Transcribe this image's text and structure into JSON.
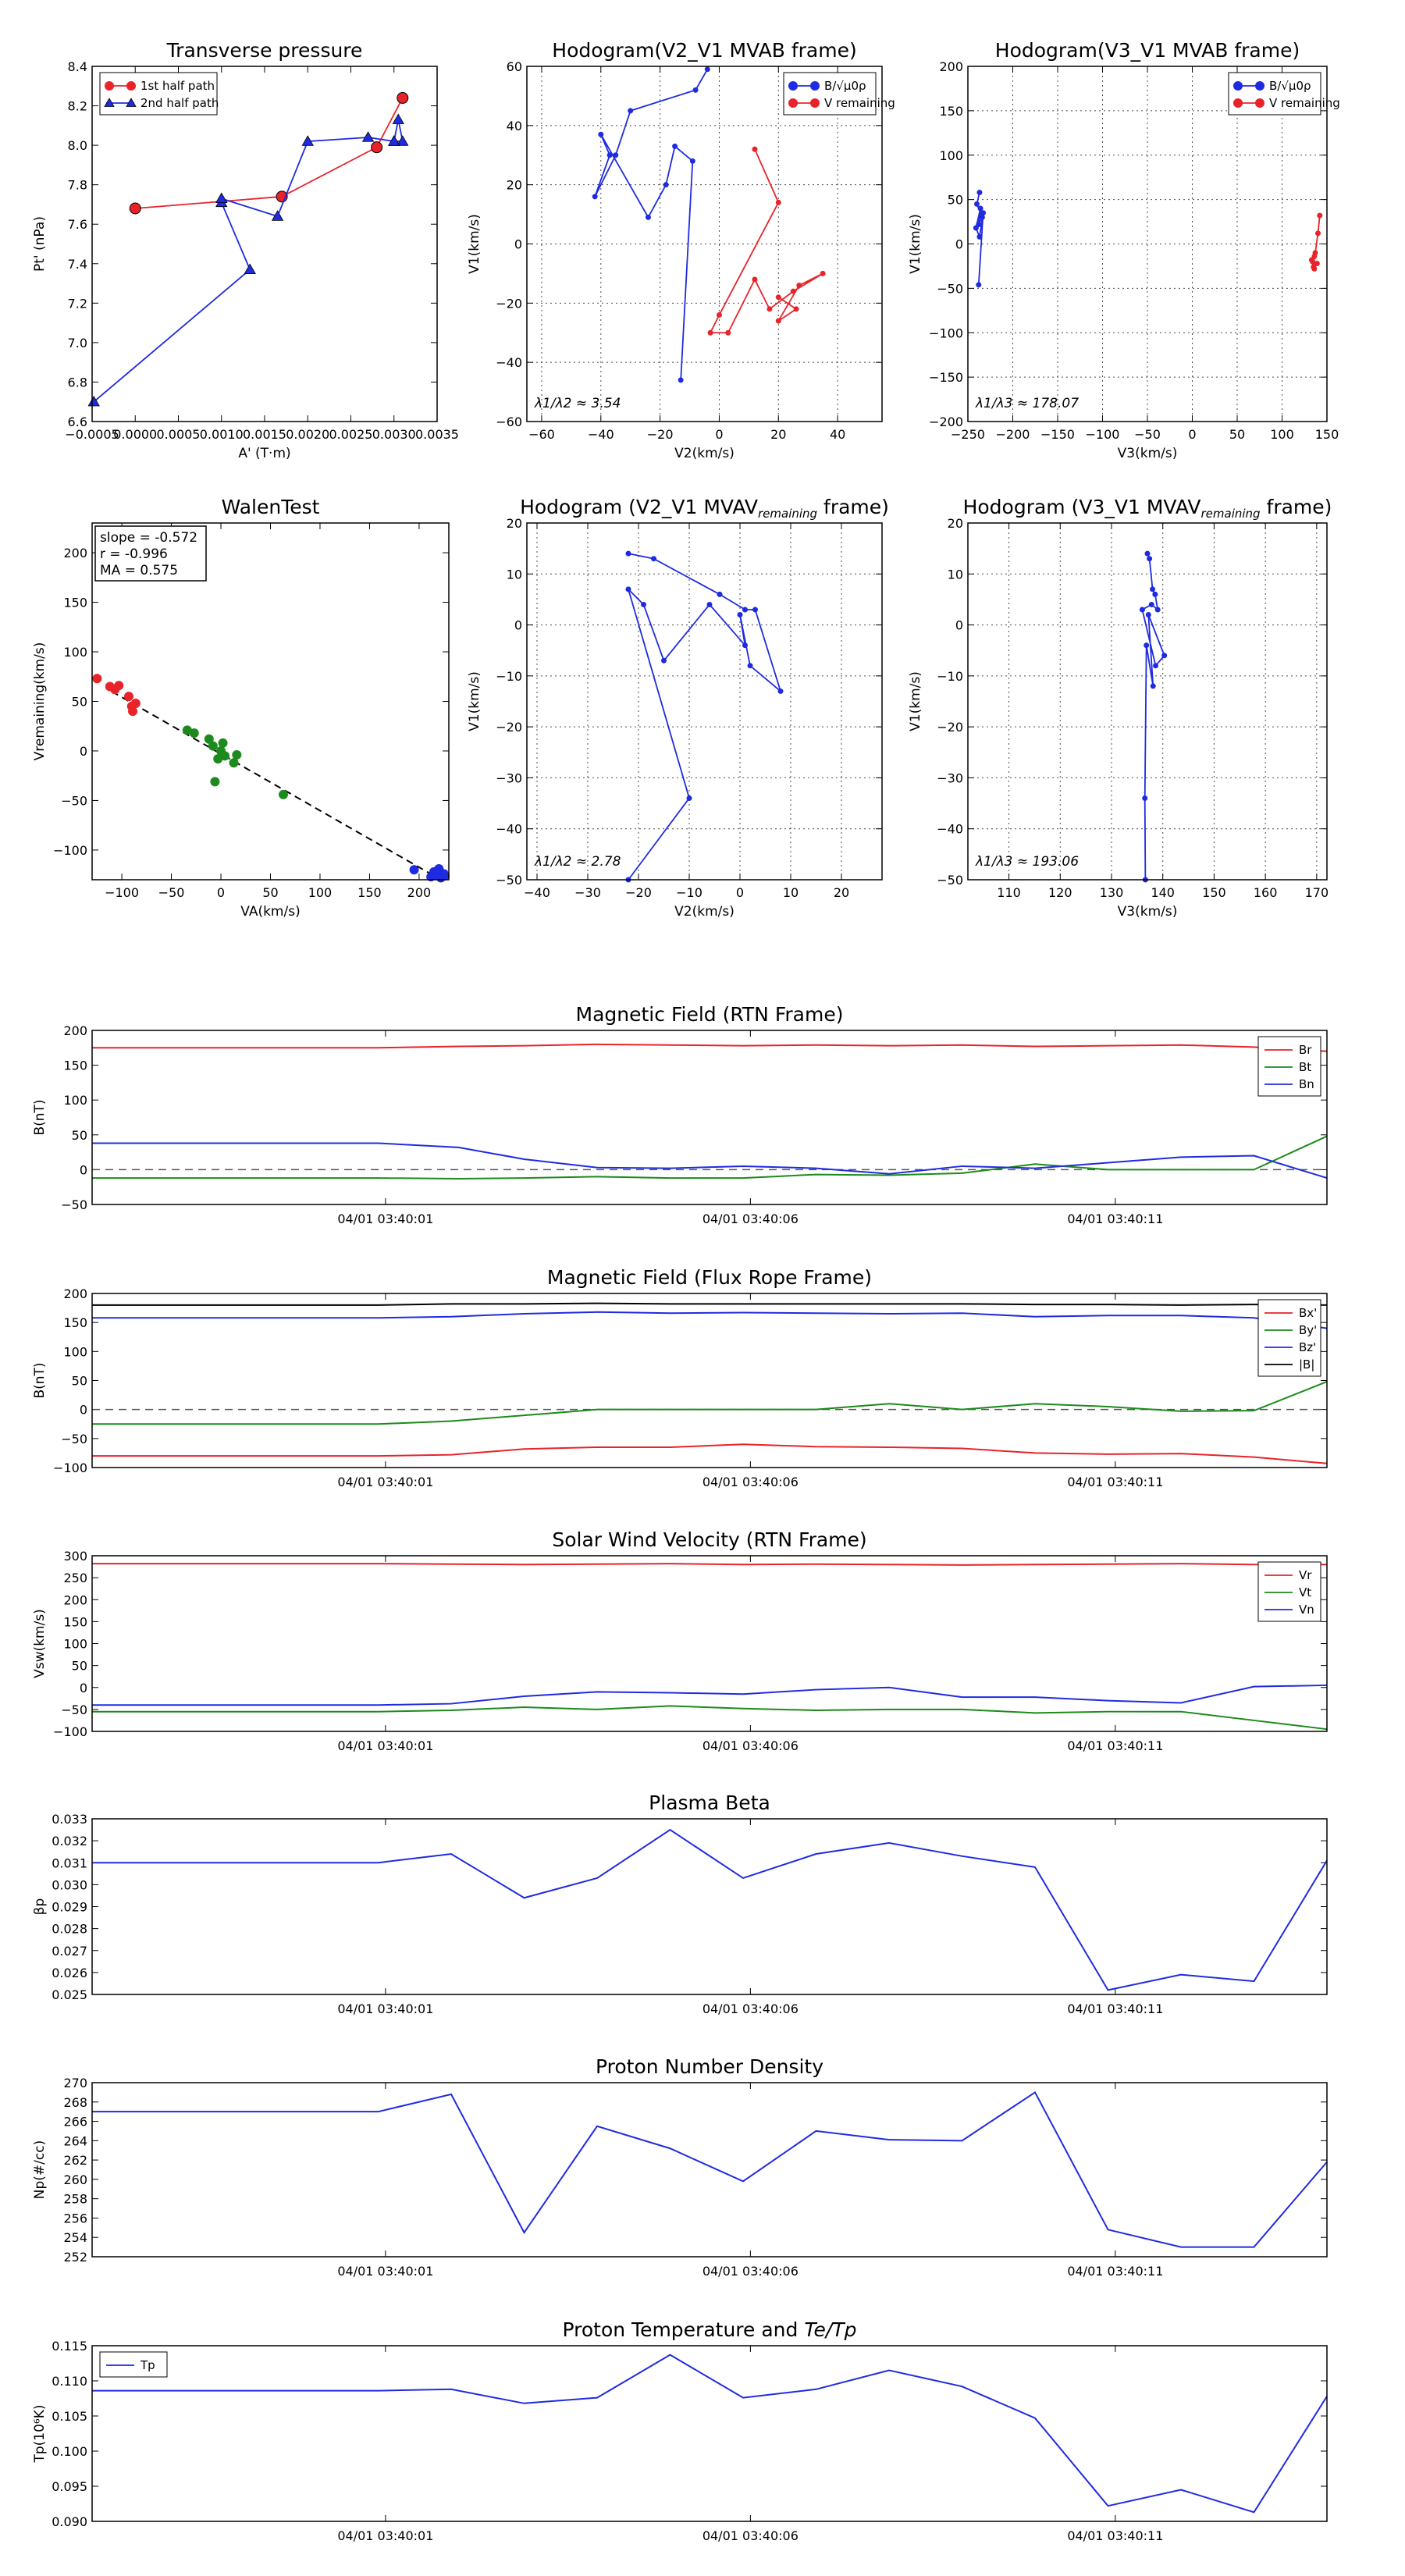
{
  "colors": {
    "red": "#e8232a",
    "blue": "#1f2be0",
    "green": "#1c8a1c",
    "black": "#000000",
    "grid": "#000000"
  },
  "time_ticks": [
    "04/01 03:40:01",
    "04/01 03:40:06",
    "04/01 03:40:11"
  ],
  "chart_data": [
    {
      "id": "transverse-pressure",
      "type": "scatter",
      "title": "Transverse pressure",
      "xlabel": "A' (T·m)",
      "ylabel": "Pt' (nPa)",
      "xlim": [
        -0.0005,
        0.0035
      ],
      "ylim": [
        6.6,
        8.4
      ],
      "xticks": [
        "−0.0005",
        "0.0000",
        "0.0005",
        "0.0010",
        "0.0015",
        "0.0020",
        "0.0025",
        "0.0030",
        "0.0035"
      ],
      "yticks": [
        "6.6",
        "6.8",
        "7.0",
        "7.2",
        "7.4",
        "7.6",
        "7.8",
        "8.0",
        "8.2",
        "8.4"
      ],
      "legend": "top-left",
      "series": [
        {
          "name": "1st half path",
          "color": "red",
          "marker": "circle",
          "x": [
            0.0,
            0.0017,
            0.0028,
            0.0031
          ],
          "y": [
            7.68,
            7.74,
            7.99,
            8.24
          ]
        },
        {
          "name": "2nd half path",
          "color": "blue",
          "marker": "triangle",
          "x": [
            -0.00048,
            0.00133,
            0.001,
            0.001,
            0.00165,
            0.002,
            0.0027,
            0.003,
            0.00305,
            0.0031,
            0.003
          ],
          "y": [
            6.7,
            7.37,
            7.71,
            7.73,
            7.64,
            8.02,
            8.04,
            8.02,
            8.13,
            8.02,
            8.02
          ]
        }
      ]
    },
    {
      "id": "hodogram-v2-v1-mvab",
      "type": "line",
      "title": "Hodogram(V2_V1 MVAB frame)",
      "xlabel": "V2(km/s)",
      "ylabel": "V1(km/s)",
      "xlim": [
        -65,
        55
      ],
      "ylim": [
        -60,
        60
      ],
      "xticks": [
        "−60",
        "−40",
        "−20",
        "0",
        "20",
        "40"
      ],
      "yticks": [
        "−60",
        "−40",
        "−20",
        "0",
        "20",
        "40",
        "60"
      ],
      "annotation": "λ1/λ2 ≈ 3.54",
      "legend": "top-right",
      "series": [
        {
          "name": "B/√μ0ρ",
          "color": "blue",
          "x": [
            -4,
            -8,
            -30,
            -35,
            -42,
            -37,
            -40,
            -24,
            -18,
            -15,
            -9,
            -13
          ],
          "y": [
            59,
            52,
            45,
            30,
            16,
            30,
            37,
            9,
            20,
            33,
            28,
            -46
          ]
        },
        {
          "name": "V remaining",
          "color": "red",
          "x": [
            12,
            20,
            0,
            -3,
            3,
            12,
            17,
            25,
            35,
            27,
            20,
            26,
            20
          ],
          "y": [
            32,
            14,
            -24,
            -30,
            -30,
            -12,
            -22,
            -16,
            -10,
            -14,
            -26,
            -22,
            -18
          ]
        }
      ]
    },
    {
      "id": "hodogram-v3-v1-mvab",
      "type": "line",
      "title": "Hodogram(V3_V1 MVAB frame)",
      "xlabel": "V3(km/s)",
      "ylabel": "V1(km/s)",
      "xlim": [
        -250,
        150
      ],
      "ylim": [
        -200,
        200
      ],
      "xticks": [
        "−250",
        "−200",
        "−150",
        "−100",
        "−50",
        "0",
        "50",
        "100",
        "150"
      ],
      "yticks": [
        "−200",
        "−150",
        "−100",
        "−50",
        "0",
        "50",
        "100",
        "150",
        "200"
      ],
      "annotation": "λ1/λ3 ≈ 178.07",
      "legend": "top-right",
      "series": [
        {
          "name": "B/√μ0ρ",
          "color": "blue",
          "x": [
            -237,
            -240,
            -234,
            -238,
            -236,
            -241,
            -237,
            -233,
            -238
          ],
          "y": [
            58,
            45,
            30,
            22,
            40,
            18,
            8,
            35,
            -46
          ]
        },
        {
          "name": "V remaining",
          "color": "red",
          "x": [
            142,
            140,
            137,
            134,
            136,
            133,
            136,
            135,
            139
          ],
          "y": [
            32,
            12,
            -10,
            -20,
            -28,
            -18,
            -14,
            -26,
            -22
          ]
        }
      ]
    },
    {
      "id": "walen-test",
      "type": "scatter",
      "title": "WalenTest",
      "xlabel": "VA(km/s)",
      "ylabel": "Vremaining(km/s)",
      "xlim": [
        -130,
        230
      ],
      "ylim": [
        -130,
        230
      ],
      "xticks": [
        "−100",
        "−50",
        "0",
        "50",
        "100",
        "150",
        "200"
      ],
      "yticks": [
        "−100",
        "−50",
        "0",
        "50",
        "100",
        "150",
        "200"
      ],
      "annotation_lines": [
        "slope = -0.572",
        "r = -0.996",
        "MA = 0.575"
      ],
      "fit": {
        "slope": -0.572,
        "intercept": -3
      },
      "series": [
        {
          "name": "red",
          "color": "red",
          "x": [
            -125,
            -112,
            -107,
            -103,
            -93,
            -90,
            -89,
            -86
          ],
          "y": [
            73,
            65,
            62,
            66,
            55,
            45,
            40,
            48
          ]
        },
        {
          "name": "green",
          "color": "green",
          "x": [
            -34,
            -27,
            -12,
            -8,
            -3,
            0,
            2,
            4,
            13,
            16,
            63,
            -6
          ],
          "y": [
            21,
            18,
            12,
            5,
            -8,
            0,
            8,
            -5,
            -12,
            -4,
            -44,
            -31
          ]
        },
        {
          "name": "blue",
          "color": "blue",
          "x": [
            195,
            212,
            215,
            218,
            220,
            222,
            225,
            226
          ],
          "y": [
            -120,
            -127,
            -122,
            -125,
            -119,
            -128,
            -124,
            -126
          ]
        }
      ]
    },
    {
      "id": "hodogram-v2-v1-mvav",
      "type": "line",
      "title": "Hodogram (V2_V1 MVAV",
      "title_sub": "remaining",
      "title_end": " frame)",
      "xlabel": "V2(km/s)",
      "ylabel": "V1(km/s)",
      "xlim": [
        -42,
        28
      ],
      "ylim": [
        -50,
        20
      ],
      "xticks": [
        "−40",
        "−30",
        "−20",
        "−10",
        "0",
        "10",
        "20"
      ],
      "yticks": [
        "−50",
        "−40",
        "−30",
        "−20",
        "−10",
        "0",
        "10",
        "20"
      ],
      "annotation": "λ1/λ2 ≈ 2.78",
      "series": [
        {
          "name": "blue",
          "color": "blue",
          "x": [
            -22,
            -17,
            -4,
            1,
            3,
            8,
            2,
            0,
            1,
            -6,
            -15,
            -19,
            -22,
            -10,
            -22
          ],
          "y": [
            14,
            13,
            6,
            3,
            3,
            -13,
            -8,
            2,
            -4,
            4,
            -7,
            4,
            7,
            -34,
            -50
          ]
        }
      ]
    },
    {
      "id": "hodogram-v3-v1-mvav",
      "type": "line",
      "title": "Hodogram (V3_V1 MVAV",
      "title_sub": "remaining",
      "title_end": " frame)",
      "xlabel": "V3(km/s)",
      "ylabel": "V1(km/s)",
      "xlim": [
        102,
        172
      ],
      "ylim": [
        -50,
        20
      ],
      "xticks": [
        "110",
        "120",
        "130",
        "140",
        "150",
        "160",
        "170"
      ],
      "yticks": [
        "−50",
        "−40",
        "−30",
        "−20",
        "−10",
        "0",
        "10",
        "20"
      ],
      "annotation": "λ1/λ3 ≈ 193.06",
      "series": [
        {
          "name": "blue",
          "color": "blue",
          "x": [
            137,
            137.4,
            138,
            138.5,
            139,
            137.8,
            136,
            138.6,
            140.3,
            137.2,
            138.1,
            136.8,
            136.5,
            136.6
          ],
          "y": [
            14,
            13,
            7,
            6,
            3,
            4,
            3,
            -8,
            -6,
            2,
            -12,
            -4,
            -34,
            -50
          ]
        }
      ]
    },
    {
      "id": "magnetic-field-rtn",
      "type": "line",
      "title": "Magnetic Field (RTN Frame)",
      "ylabel": "B(nT)",
      "ylim": [
        -50,
        200
      ],
      "yticks": [
        "−50",
        "0",
        "50",
        "100",
        "150",
        "200"
      ],
      "legend": "top-right",
      "zero_line": true,
      "x": [
        0,
        1.1,
        2,
        3,
        4,
        5,
        6,
        7,
        8,
        9,
        10,
        11,
        12,
        13
      ],
      "series": [
        {
          "name": "Br",
          "color": "red",
          "values": [
            175,
            177,
            178,
            180,
            179,
            178,
            179,
            178,
            179,
            177,
            178,
            179,
            176,
            170
          ]
        },
        {
          "name": "Bt",
          "color": "green",
          "values": [
            -12,
            -13,
            -12,
            -10,
            -12,
            -12,
            -7,
            -8,
            -5,
            8,
            0,
            0,
            0,
            48
          ]
        },
        {
          "name": "Bn",
          "color": "blue",
          "values": [
            38,
            32,
            15,
            3,
            2,
            5,
            2,
            -6,
            5,
            2,
            10,
            18,
            20,
            -12
          ]
        }
      ]
    },
    {
      "id": "magnetic-field-flux-rope",
      "type": "line",
      "title": "Magnetic Field (Flux Rope Frame)",
      "ylabel": "B(nT)",
      "ylim": [
        -100,
        200
      ],
      "yticks": [
        "−100",
        "−50",
        "0",
        "50",
        "100",
        "150",
        "200"
      ],
      "legend": "top-right",
      "zero_line": true,
      "x": [
        0,
        1,
        2,
        3,
        4,
        5,
        6,
        7,
        8,
        9,
        10,
        11,
        12,
        13
      ],
      "series": [
        {
          "name": "Bx'",
          "color": "red",
          "values": [
            -80,
            -78,
            -68,
            -65,
            -65,
            -60,
            -64,
            -65,
            -67,
            -75,
            -77,
            -76,
            -82,
            -93
          ]
        },
        {
          "name": "By'",
          "color": "green",
          "values": [
            -25,
            -20,
            -10,
            0,
            0,
            0,
            0,
            10,
            0,
            10,
            5,
            -3,
            -2,
            48
          ]
        },
        {
          "name": "Bz'",
          "color": "blue",
          "values": [
            158,
            160,
            165,
            168,
            166,
            167,
            166,
            165,
            166,
            160,
            162,
            162,
            158,
            140
          ]
        },
        {
          "name": "|B|",
          "color": "black",
          "values": [
            180,
            182,
            182,
            183,
            182,
            182,
            182,
            182,
            182,
            181,
            181,
            180,
            181,
            180
          ]
        }
      ]
    },
    {
      "id": "solar-wind-velocity",
      "type": "line",
      "title": "Solar Wind Velocity (RTN Frame)",
      "ylabel": "Vsw(km/s)",
      "ylim": [
        -100,
        300
      ],
      "yticks": [
        "−100",
        "−50",
        "0",
        "50",
        "100",
        "150",
        "200",
        "250",
        "300"
      ],
      "legend": "top-right",
      "x": [
        0,
        1,
        2,
        3,
        4,
        5,
        6,
        7,
        8,
        9,
        10,
        11,
        12,
        13
      ],
      "series": [
        {
          "name": "Vr",
          "color": "red",
          "values": [
            282,
            281,
            280,
            281,
            282,
            280,
            281,
            280,
            279,
            280,
            281,
            282,
            280,
            280
          ]
        },
        {
          "name": "Vt",
          "color": "green",
          "values": [
            -55,
            -52,
            -45,
            -50,
            -42,
            -48,
            -52,
            -50,
            -50,
            -58,
            -55,
            -55,
            -75,
            -95
          ]
        },
        {
          "name": "Vn",
          "color": "blue",
          "values": [
            -40,
            -37,
            -20,
            -10,
            -12,
            -15,
            -5,
            0,
            -22,
            -22,
            -30,
            -35,
            2,
            5
          ]
        }
      ]
    },
    {
      "id": "plasma-beta",
      "type": "line",
      "title": "Plasma Beta",
      "ylabel": "βp",
      "ylim": [
        0.025,
        0.033
      ],
      "yticks": [
        "0.025",
        "0.026",
        "0.027",
        "0.028",
        "0.029",
        "0.030",
        "0.031",
        "0.032",
        "0.033"
      ],
      "x": [
        0,
        1,
        2,
        3,
        4,
        5,
        6,
        7,
        8,
        9,
        10,
        11,
        12,
        13
      ],
      "series": [
        {
          "name": "beta",
          "color": "blue",
          "values": [
            0.031,
            0.0314,
            0.0294,
            0.0303,
            0.0325,
            0.0303,
            0.0314,
            0.0319,
            0.0313,
            0.0308,
            0.0252,
            0.0259,
            0.0256,
            0.0311
          ]
        }
      ]
    },
    {
      "id": "proton-number-density",
      "type": "line",
      "title": "Proton Number Density",
      "ylabel": "Np(#/cc)",
      "ylim": [
        252,
        270
      ],
      "yticks": [
        "252",
        "254",
        "256",
        "258",
        "260",
        "262",
        "264",
        "266",
        "268",
        "270"
      ],
      "x": [
        0,
        1,
        2,
        3,
        4,
        5,
        6,
        7,
        8,
        9,
        10,
        11,
        12,
        13
      ],
      "series": [
        {
          "name": "Np",
          "color": "blue",
          "values": [
            267.0,
            268.8,
            254.5,
            265.5,
            263.2,
            259.8,
            265.0,
            264.1,
            264.0,
            269.0,
            254.8,
            253.0,
            253.0,
            261.8
          ]
        }
      ]
    },
    {
      "id": "proton-temperature",
      "type": "line",
      "title": "Proton Temperature and",
      "title_math": "Te/Tp",
      "ylabel": "Tp(10⁶K)",
      "ylim": [
        0.09,
        0.115
      ],
      "yticks": [
        "0.090",
        "0.095",
        "0.100",
        "0.105",
        "0.110",
        "0.115"
      ],
      "legend": "top-left",
      "x": [
        0,
        1,
        2,
        3,
        4,
        5,
        6,
        7,
        8,
        9,
        10,
        11,
        12,
        13
      ],
      "series": [
        {
          "name": "Tp",
          "color": "blue",
          "values": [
            0.1086,
            0.1088,
            0.1068,
            0.1076,
            0.1137,
            0.1076,
            0.1088,
            0.1115,
            0.1092,
            0.1047,
            0.0922,
            0.0945,
            0.0913,
            0.1078
          ]
        }
      ]
    }
  ]
}
